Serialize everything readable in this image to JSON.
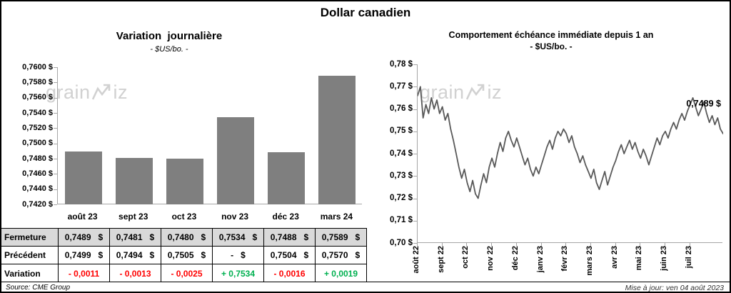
{
  "page": {
    "title": "Dollar canadien"
  },
  "watermark": {
    "prefix": "grain",
    "suffix": "iz"
  },
  "left_chart": {
    "title": "Variation  journalière",
    "subtitle": "- $US/bo. -",
    "source": "Source: CME Group"
  },
  "right_chart": {
    "title": "Comportement échéance immédiate depuis 1 an",
    "subtitle": "- $US/bo. -",
    "last_price_label": "0,7489 $",
    "updated": "Mise à jour: ven 04 août 2023"
  },
  "chart_data": [
    {
      "type": "bar",
      "title": "Variation journalière - $US/bo.",
      "categories": [
        "août 23",
        "sept 23",
        "oct 23",
        "nov 23",
        "déc 23",
        "mars 24"
      ],
      "values": [
        0.7489,
        0.7481,
        0.748,
        0.7534,
        0.7488,
        0.7589
      ],
      "ylim": [
        0.742,
        0.76
      ],
      "ytick_labels": [
        "0,7600 $",
        "0,7580 $",
        "0,7560 $",
        "0,7540 $",
        "0,7520 $",
        "0,7500 $",
        "0,7480 $",
        "0,7460 $",
        "0,7440 $",
        "0,7420 $"
      ],
      "bar_color": "#7f7f7f",
      "grid": false,
      "legend": "none"
    },
    {
      "type": "line",
      "title": "Comportement échéance immédiate depuis 1 an - $US/bo.",
      "x_labels": [
        "août 22",
        "sept 22",
        "oct 22",
        "nov 22",
        "déc 22",
        "janv 23",
        "févr 23",
        "mars 23",
        "avr 23",
        "mai 23",
        "juin 23",
        "juil 23"
      ],
      "points_per_month": 9,
      "y": [
        0.766,
        0.77,
        0.756,
        0.762,
        0.758,
        0.765,
        0.76,
        0.764,
        0.758,
        0.761,
        0.755,
        0.758,
        0.751,
        0.746,
        0.74,
        0.734,
        0.729,
        0.733,
        0.727,
        0.723,
        0.728,
        0.722,
        0.72,
        0.726,
        0.731,
        0.727,
        0.734,
        0.738,
        0.734,
        0.74,
        0.745,
        0.741,
        0.747,
        0.75,
        0.746,
        0.743,
        0.747,
        0.743,
        0.739,
        0.735,
        0.738,
        0.733,
        0.73,
        0.734,
        0.731,
        0.735,
        0.739,
        0.743,
        0.746,
        0.742,
        0.747,
        0.75,
        0.748,
        0.751,
        0.749,
        0.745,
        0.748,
        0.743,
        0.74,
        0.736,
        0.739,
        0.735,
        0.732,
        0.729,
        0.733,
        0.727,
        0.724,
        0.728,
        0.732,
        0.726,
        0.73,
        0.734,
        0.737,
        0.741,
        0.744,
        0.74,
        0.743,
        0.746,
        0.742,
        0.745,
        0.741,
        0.738,
        0.742,
        0.739,
        0.735,
        0.739,
        0.743,
        0.747,
        0.744,
        0.748,
        0.75,
        0.747,
        0.751,
        0.754,
        0.751,
        0.755,
        0.758,
        0.755,
        0.759,
        0.762,
        0.765,
        0.761,
        0.757,
        0.76,
        0.763,
        0.758,
        0.754,
        0.757,
        0.753,
        0.756,
        0.751,
        0.7489
      ],
      "ylim": [
        0.7,
        0.78
      ],
      "ytick_labels": [
        "0,78 $",
        "0,77 $",
        "0,76 $",
        "0,75 $",
        "0,74 $",
        "0,73 $",
        "0,72 $",
        "0,71 $",
        "0,70 $"
      ],
      "line_color": "#595959",
      "last_value": 0.7489,
      "grid": false,
      "legend": "none"
    }
  ],
  "table": {
    "rows": [
      {
        "label": "Fermeture",
        "values": [
          "0,7489",
          "0,7481",
          "0,7480",
          "0,7534",
          "0,7488",
          "0,7589"
        ],
        "suffix": "$",
        "bg": "#d9d9d9"
      },
      {
        "label": "Précédent",
        "values": [
          "0,7499",
          "0,7494",
          "0,7505",
          "-",
          "0,7504",
          "0,7570"
        ],
        "suffix": "$",
        "bg": "#ffffff"
      },
      {
        "label": "Variation",
        "values": [
          "- 0,0011",
          "- 0,0013",
          "- 0,0025",
          "+ 0,7534",
          "- 0,0016",
          "+ 0,0019"
        ],
        "value_colors": [
          "#ff0000",
          "#ff0000",
          "#ff0000",
          "#00b050",
          "#ff0000",
          "#00b050"
        ],
        "bg": "#ffffff"
      }
    ]
  },
  "colors": {
    "bar": "#7f7f7f",
    "line": "#595959",
    "negative": "#ff0000",
    "positive": "#00b050",
    "header_row_bg": "#d9d9d9",
    "watermark": "#c6c6c6",
    "axis": "#a6a6a6"
  }
}
